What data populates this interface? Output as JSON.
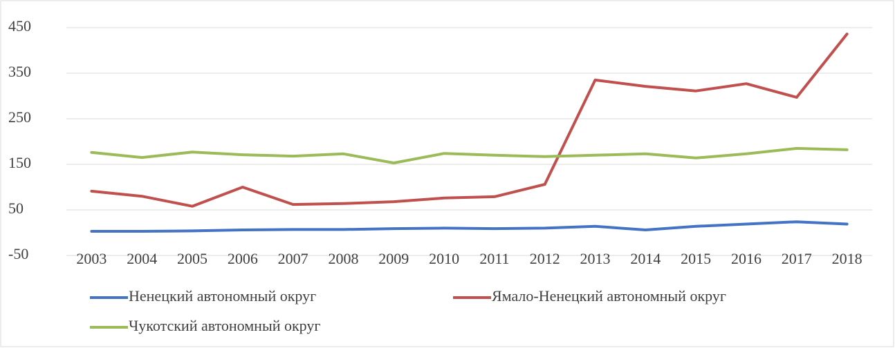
{
  "chart_data": {
    "type": "line",
    "categories": [
      "2003",
      "2004",
      "2005",
      "2006",
      "2007",
      "2008",
      "2009",
      "2010",
      "2011",
      "2012",
      "2013",
      "2014",
      "2015",
      "2016",
      "2017",
      "2018"
    ],
    "series": [
      {
        "name": "Ненецкий автономный округ",
        "color": "#4472c4",
        "values": [
          3,
          3,
          4,
          6,
          7,
          7,
          9,
          10,
          9,
          10,
          14,
          6,
          14,
          19,
          24,
          19
        ]
      },
      {
        "name": "Ямало-Ненецкий автономный округ",
        "color": "#c0504d",
        "values": [
          91,
          80,
          58,
          100,
          62,
          64,
          68,
          76,
          79,
          106,
          335,
          321,
          311,
          327,
          297,
          436
        ]
      },
      {
        "name": "Чукотский автономный округ",
        "color": "#9bbb59",
        "values": [
          176,
          165,
          177,
          171,
          168,
          173,
          153,
          174,
          170,
          167,
          170,
          173,
          164,
          173,
          185,
          182
        ]
      }
    ],
    "ylim": [
      -50,
      450
    ],
    "yticks": [
      -50,
      50,
      150,
      250,
      350,
      450
    ],
    "grid": true,
    "legend": "bottom"
  }
}
